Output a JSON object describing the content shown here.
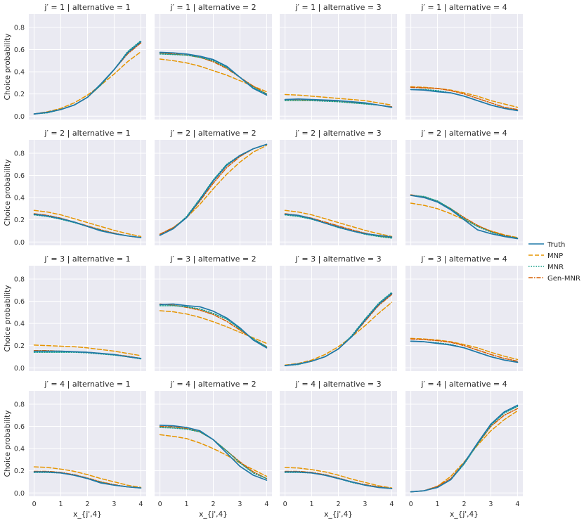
{
  "chart_data": {
    "type": "line",
    "layout": "4x4 facet grid",
    "ylabel": "Choice probability",
    "xlabel": "x_{j',4}",
    "xlim": [
      -0.2,
      4.2
    ],
    "ylim": [
      -0.03,
      0.92
    ],
    "xticks": [
      0,
      1,
      2,
      3,
      4
    ],
    "yticks": [
      0.0,
      0.2,
      0.4,
      0.6,
      0.8
    ],
    "x": [
      0,
      0.5,
      1,
      1.5,
      2,
      2.5,
      3,
      3.5,
      4
    ],
    "legend": {
      "position": "right",
      "entries": [
        "Truth",
        "MNP",
        "MNR",
        "Gen-MNR"
      ]
    },
    "styles": {
      "Truth": {
        "color": "#1f78a8",
        "dash": ""
      },
      "MNP": {
        "color": "#e69500",
        "dash": "6,3"
      },
      "MNR": {
        "color": "#129e88",
        "dash": "1.5,2"
      },
      "Gen-MNR": {
        "color": "#d55e00",
        "dash": "6,2,1.5,2"
      }
    },
    "panels": [
      {
        "title": "j′ = 1 | alternative = 1",
        "series": [
          {
            "name": "Truth",
            "values": [
              0.02,
              0.035,
              0.06,
              0.1,
              0.17,
              0.29,
              0.42,
              0.57,
              0.67
            ]
          },
          {
            "name": "MNP",
            "values": [
              0.02,
              0.04,
              0.07,
              0.12,
              0.19,
              0.28,
              0.38,
              0.49,
              0.58
            ]
          },
          {
            "name": "MNR",
            "values": [
              0.02,
              0.03,
              0.06,
              0.1,
              0.17,
              0.28,
              0.42,
              0.58,
              0.68
            ]
          },
          {
            "name": "Gen-MNR",
            "values": [
              0.02,
              0.035,
              0.06,
              0.1,
              0.17,
              0.28,
              0.42,
              0.56,
              0.66
            ]
          }
        ]
      },
      {
        "title": "j′ = 1 | alternative = 2",
        "series": [
          {
            "name": "Truth",
            "values": [
              0.575,
              0.57,
              0.56,
              0.54,
              0.51,
              0.45,
              0.35,
              0.25,
              0.19
            ]
          },
          {
            "name": "MNP",
            "values": [
              0.515,
              0.5,
              0.48,
              0.45,
              0.41,
              0.37,
              0.32,
              0.27,
              0.22
            ]
          },
          {
            "name": "MNR",
            "values": [
              0.56,
              0.555,
              0.55,
              0.53,
              0.5,
              0.44,
              0.35,
              0.26,
              0.2
            ]
          },
          {
            "name": "Gen-MNR",
            "values": [
              0.57,
              0.56,
              0.55,
              0.53,
              0.49,
              0.43,
              0.35,
              0.27,
              0.2
            ]
          }
        ]
      },
      {
        "title": "j′ = 1 | alternative = 3",
        "series": [
          {
            "name": "Truth",
            "values": [
              0.15,
              0.155,
              0.15,
              0.145,
              0.14,
              0.13,
              0.12,
              0.1,
              0.08
            ]
          },
          {
            "name": "MNP",
            "values": [
              0.195,
              0.19,
              0.18,
              0.17,
              0.16,
              0.15,
              0.14,
              0.12,
              0.1
            ]
          },
          {
            "name": "MNR",
            "values": [
              0.14,
              0.14,
              0.14,
              0.135,
              0.13,
              0.12,
              0.11,
              0.1,
              0.08
            ]
          },
          {
            "name": "Gen-MNR",
            "values": [
              0.15,
              0.15,
              0.145,
              0.14,
              0.135,
              0.125,
              0.115,
              0.1,
              0.085
            ]
          }
        ]
      },
      {
        "title": "j′ = 1 | alternative = 4",
        "series": [
          {
            "name": "Truth",
            "values": [
              0.24,
              0.235,
              0.22,
              0.21,
              0.18,
              0.14,
              0.1,
              0.07,
              0.05
            ]
          },
          {
            "name": "MNP",
            "values": [
              0.265,
              0.26,
              0.25,
              0.235,
              0.21,
              0.18,
              0.14,
              0.11,
              0.08
            ]
          },
          {
            "name": "MNR",
            "values": [
              0.24,
              0.24,
              0.23,
              0.21,
              0.18,
              0.14,
              0.1,
              0.07,
              0.05
            ]
          },
          {
            "name": "Gen-MNR",
            "values": [
              0.26,
              0.255,
              0.25,
              0.23,
              0.2,
              0.16,
              0.12,
              0.08,
              0.06
            ]
          }
        ]
      },
      {
        "title": "j′ = 2 | alternative = 1",
        "series": [
          {
            "name": "Truth",
            "values": [
              0.25,
              0.235,
              0.21,
              0.18,
              0.14,
              0.1,
              0.075,
              0.055,
              0.04
            ]
          },
          {
            "name": "MNP",
            "values": [
              0.285,
              0.27,
              0.245,
              0.21,
              0.175,
              0.14,
              0.105,
              0.075,
              0.05
            ]
          },
          {
            "name": "MNR",
            "values": [
              0.245,
              0.23,
              0.205,
              0.175,
              0.14,
              0.105,
              0.075,
              0.055,
              0.04
            ]
          },
          {
            "name": "Gen-MNR",
            "values": [
              0.255,
              0.24,
              0.215,
              0.18,
              0.145,
              0.11,
              0.08,
              0.055,
              0.04
            ]
          }
        ]
      },
      {
        "title": "j′ = 2 | alternative = 2",
        "series": [
          {
            "name": "Truth",
            "values": [
              0.06,
              0.12,
              0.22,
              0.38,
              0.55,
              0.69,
              0.78,
              0.84,
              0.88
            ]
          },
          {
            "name": "MNP",
            "values": [
              0.07,
              0.13,
              0.22,
              0.34,
              0.48,
              0.61,
              0.72,
              0.81,
              0.87
            ]
          },
          {
            "name": "MNR",
            "values": [
              0.06,
              0.12,
              0.23,
              0.39,
              0.56,
              0.7,
              0.78,
              0.84,
              0.88
            ]
          },
          {
            "name": "Gen-MNR",
            "values": [
              0.07,
              0.13,
              0.22,
              0.37,
              0.53,
              0.67,
              0.77,
              0.84,
              0.88
            ]
          }
        ]
      },
      {
        "title": "j′ = 2 | alternative = 3",
        "series": [
          {
            "name": "Truth",
            "values": [
              0.25,
              0.24,
              0.21,
              0.17,
              0.135,
              0.1,
              0.075,
              0.06,
              0.045
            ]
          },
          {
            "name": "MNP",
            "values": [
              0.285,
              0.27,
              0.245,
              0.21,
              0.175,
              0.14,
              0.105,
              0.075,
              0.05
            ]
          },
          {
            "name": "MNR",
            "values": [
              0.245,
              0.23,
              0.205,
              0.17,
              0.13,
              0.1,
              0.07,
              0.05,
              0.035
            ]
          },
          {
            "name": "Gen-MNR",
            "values": [
              0.255,
              0.24,
              0.215,
              0.18,
              0.145,
              0.11,
              0.08,
              0.055,
              0.04
            ]
          }
        ]
      },
      {
        "title": "j′ = 2 | alternative = 4",
        "series": [
          {
            "name": "Truth",
            "values": [
              0.42,
              0.4,
              0.36,
              0.29,
              0.2,
              0.11,
              0.075,
              0.05,
              0.03
            ]
          },
          {
            "name": "MNP",
            "values": [
              0.35,
              0.33,
              0.3,
              0.255,
              0.2,
              0.145,
              0.1,
              0.065,
              0.04
            ]
          },
          {
            "name": "MNR",
            "values": [
              0.42,
              0.41,
              0.37,
              0.3,
              0.21,
              0.14,
              0.09,
              0.055,
              0.035
            ]
          },
          {
            "name": "Gen-MNR",
            "values": [
              0.425,
              0.405,
              0.365,
              0.3,
              0.22,
              0.15,
              0.095,
              0.06,
              0.035
            ]
          }
        ]
      },
      {
        "title": "j′ = 3 | alternative = 1",
        "series": [
          {
            "name": "Truth",
            "values": [
              0.15,
              0.15,
              0.15,
              0.145,
              0.14,
              0.13,
              0.12,
              0.1,
              0.085
            ]
          },
          {
            "name": "MNP",
            "values": [
              0.205,
              0.2,
              0.195,
              0.19,
              0.18,
              0.165,
              0.15,
              0.13,
              0.11
            ]
          },
          {
            "name": "MNR",
            "values": [
              0.14,
              0.14,
              0.14,
              0.14,
              0.135,
              0.125,
              0.115,
              0.1,
              0.08
            ]
          },
          {
            "name": "Gen-MNR",
            "values": [
              0.155,
              0.155,
              0.15,
              0.145,
              0.14,
              0.13,
              0.12,
              0.105,
              0.085
            ]
          }
        ]
      },
      {
        "title": "j′ = 3 | alternative = 2",
        "series": [
          {
            "name": "Truth",
            "values": [
              0.57,
              0.575,
              0.56,
              0.55,
              0.51,
              0.45,
              0.36,
              0.25,
              0.18
            ]
          },
          {
            "name": "MNP",
            "values": [
              0.515,
              0.505,
              0.485,
              0.455,
              0.415,
              0.37,
              0.32,
              0.27,
              0.22
            ]
          },
          {
            "name": "MNR",
            "values": [
              0.56,
              0.56,
              0.55,
              0.53,
              0.49,
              0.44,
              0.35,
              0.26,
              0.19
            ]
          },
          {
            "name": "Gen-MNR",
            "values": [
              0.575,
              0.565,
              0.545,
              0.52,
              0.48,
              0.42,
              0.34,
              0.26,
              0.19
            ]
          }
        ]
      },
      {
        "title": "j′ = 3 | alternative = 3",
        "series": [
          {
            "name": "Truth",
            "values": [
              0.02,
              0.035,
              0.06,
              0.1,
              0.17,
              0.28,
              0.43,
              0.57,
              0.67
            ]
          },
          {
            "name": "MNP",
            "values": [
              0.025,
              0.04,
              0.07,
              0.12,
              0.19,
              0.28,
              0.38,
              0.49,
              0.59
            ]
          },
          {
            "name": "MNR",
            "values": [
              0.02,
              0.03,
              0.06,
              0.1,
              0.17,
              0.29,
              0.44,
              0.58,
              0.68
            ]
          },
          {
            "name": "Gen-MNR",
            "values": [
              0.02,
              0.035,
              0.06,
              0.1,
              0.17,
              0.28,
              0.42,
              0.56,
              0.66
            ]
          }
        ]
      },
      {
        "title": "j′ = 3 | alternative = 4",
        "series": [
          {
            "name": "Truth",
            "values": [
              0.24,
              0.235,
              0.22,
              0.205,
              0.18,
              0.14,
              0.1,
              0.07,
              0.05
            ]
          },
          {
            "name": "MNP",
            "values": [
              0.265,
              0.26,
              0.25,
              0.235,
              0.21,
              0.18,
              0.14,
              0.105,
              0.075
            ]
          },
          {
            "name": "MNR",
            "values": [
              0.24,
              0.235,
              0.225,
              0.21,
              0.18,
              0.14,
              0.1,
              0.07,
              0.05
            ]
          },
          {
            "name": "Gen-MNR",
            "values": [
              0.26,
              0.255,
              0.245,
              0.23,
              0.2,
              0.16,
              0.12,
              0.085,
              0.06
            ]
          }
        ]
      },
      {
        "title": "j′ = 4 | alternative = 1",
        "series": [
          {
            "name": "Truth",
            "values": [
              0.19,
              0.19,
              0.18,
              0.16,
              0.13,
              0.09,
              0.07,
              0.055,
              0.045
            ]
          },
          {
            "name": "MNP",
            "values": [
              0.235,
              0.23,
              0.215,
              0.195,
              0.165,
              0.13,
              0.1,
              0.07,
              0.05
            ]
          },
          {
            "name": "MNR",
            "values": [
              0.185,
              0.185,
              0.18,
              0.16,
              0.13,
              0.095,
              0.07,
              0.055,
              0.045
            ]
          },
          {
            "name": "Gen-MNR",
            "values": [
              0.195,
              0.195,
              0.185,
              0.165,
              0.135,
              0.1,
              0.075,
              0.055,
              0.045
            ]
          }
        ]
      },
      {
        "title": "j′ = 4 | alternative = 2",
        "series": [
          {
            "name": "Truth",
            "values": [
              0.61,
              0.605,
              0.59,
              0.56,
              0.48,
              0.36,
              0.24,
              0.16,
              0.115
            ]
          },
          {
            "name": "MNP",
            "values": [
              0.525,
              0.51,
              0.49,
              0.45,
              0.4,
              0.34,
              0.27,
              0.21,
              0.15
            ]
          },
          {
            "name": "MNR",
            "values": [
              0.59,
              0.585,
              0.575,
              0.55,
              0.48,
              0.38,
              0.27,
              0.18,
              0.13
            ]
          },
          {
            "name": "Gen-MNR",
            "values": [
              0.6,
              0.595,
              0.58,
              0.55,
              0.48,
              0.38,
              0.28,
              0.19,
              0.13
            ]
          }
        ]
      },
      {
        "title": "j′ = 4 | alternative = 3",
        "series": [
          {
            "name": "Truth",
            "values": [
              0.19,
              0.19,
              0.18,
              0.16,
              0.13,
              0.1,
              0.07,
              0.05,
              0.04
            ]
          },
          {
            "name": "MNP",
            "values": [
              0.23,
              0.225,
              0.21,
              0.19,
              0.16,
              0.125,
              0.095,
              0.065,
              0.045
            ]
          },
          {
            "name": "MNR",
            "values": [
              0.185,
              0.185,
              0.18,
              0.16,
              0.13,
              0.095,
              0.07,
              0.05,
              0.04
            ]
          },
          {
            "name": "Gen-MNR",
            "values": [
              0.195,
              0.195,
              0.185,
              0.165,
              0.135,
              0.1,
              0.075,
              0.055,
              0.04
            ]
          }
        ]
      },
      {
        "title": "j′ = 4 | alternative = 4",
        "series": [
          {
            "name": "Truth",
            "values": [
              0.01,
              0.02,
              0.05,
              0.12,
              0.27,
              0.45,
              0.62,
              0.73,
              0.79
            ]
          },
          {
            "name": "MNP",
            "values": [
              0.01,
              0.02,
              0.06,
              0.15,
              0.28,
              0.43,
              0.56,
              0.66,
              0.74
            ]
          },
          {
            "name": "MNR",
            "values": [
              0.01,
              0.02,
              0.05,
              0.12,
              0.26,
              0.44,
              0.61,
              0.72,
              0.78
            ]
          },
          {
            "name": "Gen-MNR",
            "values": [
              0.01,
              0.02,
              0.06,
              0.13,
              0.27,
              0.44,
              0.6,
              0.7,
              0.76
            ]
          }
        ]
      }
    ]
  }
}
